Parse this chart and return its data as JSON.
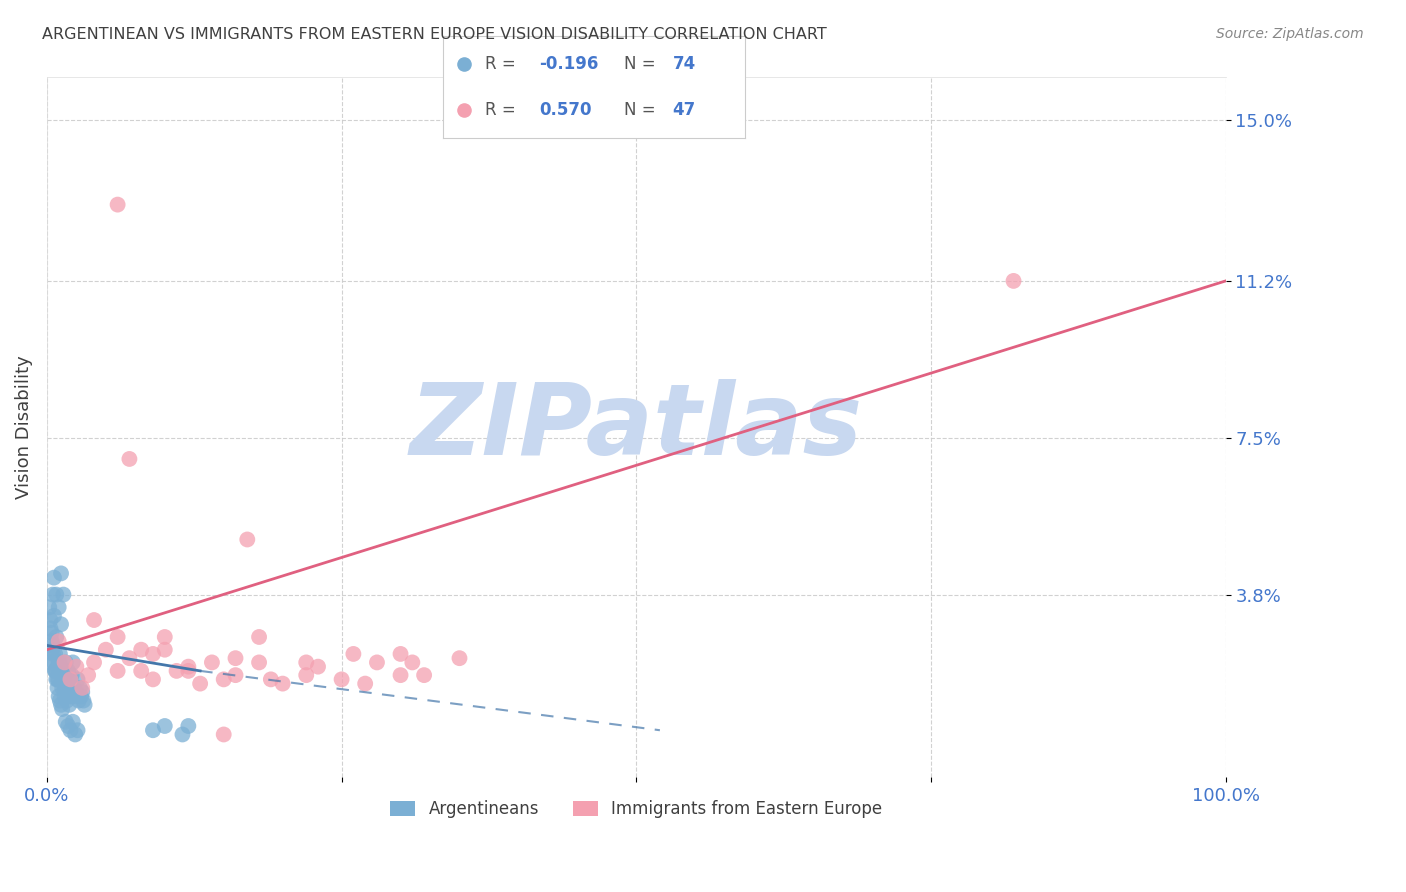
{
  "title": "ARGENTINEAN VS IMMIGRANTS FROM EASTERN EUROPE VISION DISABILITY CORRELATION CHART",
  "source": "Source: ZipAtlas.com",
  "ylabel": "Vision Disability",
  "xlim": [
    0,
    1.0
  ],
  "ylim": [
    -0.005,
    0.16
  ],
  "yticks": [
    0.038,
    0.075,
    0.112,
    0.15
  ],
  "ytick_labels": [
    "3.8%",
    "7.5%",
    "11.2%",
    "15.0%"
  ],
  "blue_R": -0.196,
  "blue_N": 74,
  "pink_R": 0.57,
  "pink_N": 47,
  "blue_label": "Argentineans",
  "pink_label": "Immigrants from Eastern Europe",
  "blue_color": "#7bafd4",
  "pink_color": "#f4a0b0",
  "blue_line_color": "#4477aa",
  "pink_line_color": "#e06080",
  "watermark": "ZIPatlas",
  "watermark_color": "#c8d8f0",
  "background_color": "#ffffff",
  "title_color": "#404040",
  "axis_label_color": "#404040",
  "tick_label_color": "#4477cc",
  "blue_scatter_x": [
    0.003,
    0.004,
    0.005,
    0.006,
    0.007,
    0.008,
    0.009,
    0.01,
    0.011,
    0.012,
    0.013,
    0.014,
    0.015,
    0.016,
    0.017,
    0.018,
    0.019,
    0.02,
    0.021,
    0.022,
    0.023,
    0.024,
    0.025,
    0.026,
    0.027,
    0.028,
    0.029,
    0.03,
    0.031,
    0.032,
    0.003,
    0.004,
    0.005,
    0.006,
    0.007,
    0.008,
    0.009,
    0.01,
    0.011,
    0.012,
    0.013,
    0.014,
    0.015,
    0.016,
    0.017,
    0.018,
    0.019,
    0.02,
    0.002,
    0.003,
    0.004,
    0.005,
    0.006,
    0.007,
    0.008,
    0.009,
    0.01,
    0.011,
    0.012,
    0.013,
    0.008,
    0.01,
    0.012,
    0.014,
    0.09,
    0.1,
    0.115,
    0.12,
    0.016,
    0.018,
    0.02,
    0.022,
    0.024,
    0.026
  ],
  "blue_scatter_y": [
    0.022,
    0.025,
    0.038,
    0.042,
    0.02,
    0.028,
    0.018,
    0.022,
    0.024,
    0.031,
    0.02,
    0.018,
    0.016,
    0.022,
    0.015,
    0.02,
    0.014,
    0.018,
    0.019,
    0.022,
    0.016,
    0.014,
    0.015,
    0.018,
    0.013,
    0.016,
    0.014,
    0.015,
    0.013,
    0.012,
    0.032,
    0.029,
    0.026,
    0.033,
    0.024,
    0.02,
    0.021,
    0.018,
    0.022,
    0.019,
    0.016,
    0.018,
    0.014,
    0.016,
    0.013,
    0.015,
    0.012,
    0.014,
    0.035,
    0.03,
    0.027,
    0.024,
    0.022,
    0.02,
    0.018,
    0.016,
    0.014,
    0.013,
    0.012,
    0.011,
    0.038,
    0.035,
    0.043,
    0.038,
    0.006,
    0.007,
    0.005,
    0.007,
    0.008,
    0.007,
    0.006,
    0.008,
    0.005,
    0.006
  ],
  "pink_scatter_x": [
    0.06,
    0.01,
    0.015,
    0.02,
    0.025,
    0.03,
    0.035,
    0.04,
    0.05,
    0.06,
    0.07,
    0.08,
    0.09,
    0.1,
    0.12,
    0.14,
    0.16,
    0.18,
    0.2,
    0.22,
    0.25,
    0.28,
    0.3,
    0.32,
    0.35,
    0.04,
    0.06,
    0.08,
    0.1,
    0.12,
    0.15,
    0.18,
    0.22,
    0.26,
    0.3,
    0.07,
    0.09,
    0.11,
    0.13,
    0.16,
    0.19,
    0.23,
    0.27,
    0.31,
    0.17,
    0.82,
    0.15
  ],
  "pink_scatter_y": [
    0.13,
    0.027,
    0.022,
    0.018,
    0.021,
    0.016,
    0.019,
    0.022,
    0.025,
    0.02,
    0.023,
    0.02,
    0.018,
    0.025,
    0.02,
    0.022,
    0.019,
    0.028,
    0.017,
    0.022,
    0.018,
    0.022,
    0.024,
    0.019,
    0.023,
    0.032,
    0.028,
    0.025,
    0.028,
    0.021,
    0.018,
    0.022,
    0.019,
    0.024,
    0.019,
    0.07,
    0.024,
    0.02,
    0.017,
    0.023,
    0.018,
    0.021,
    0.017,
    0.022,
    0.051,
    0.112,
    0.005
  ],
  "pink_trendline": [
    0.0,
    1.0,
    0.025,
    0.112
  ],
  "blue_solid_trendline": [
    0.0,
    0.13,
    0.026,
    0.02
  ],
  "blue_dash_trendline": [
    0.13,
    0.52,
    0.02,
    0.006
  ]
}
